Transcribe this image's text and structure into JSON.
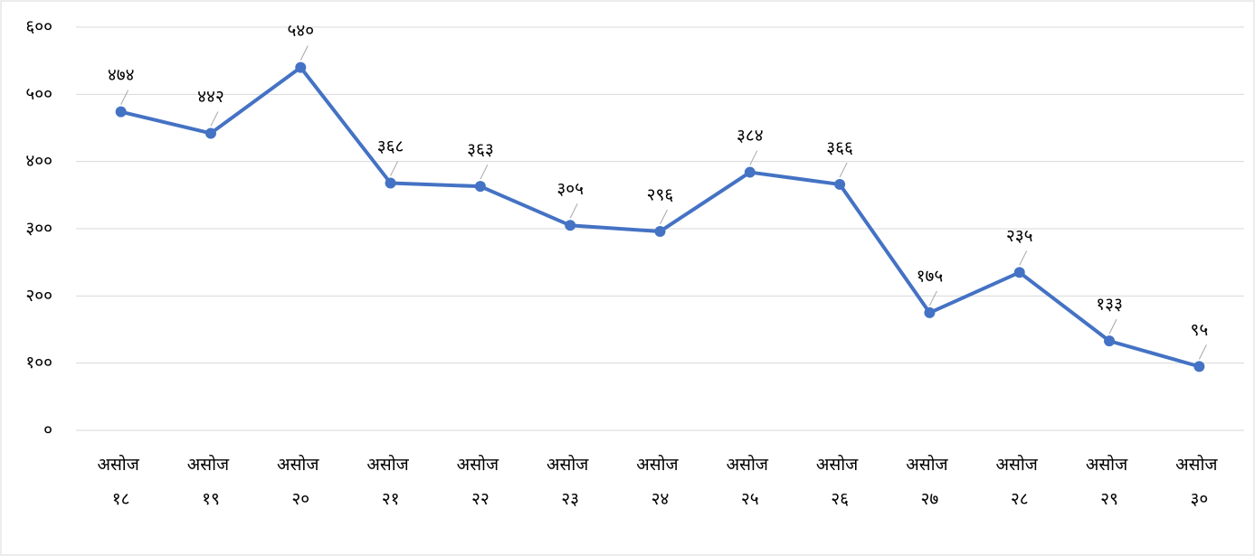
{
  "chart_data": {
    "type": "line",
    "categories": [
      "असोज १८",
      "असोज १९",
      "असोज २०",
      "असोज २१",
      "असोज २२",
      "असोज २३",
      "असोज २४",
      "असोज २५",
      "असोज २६",
      "असोज २७",
      "असोज २८",
      "असोज २९",
      "असोज ३०"
    ],
    "series": [
      {
        "color": "#4472c4",
        "values": [
          474,
          442,
          540,
          368,
          363,
          305,
          296,
          384,
          366,
          175,
          235,
          133,
          95
        ],
        "value_labels": [
          "४७४",
          "४४२",
          "५४०",
          "३६८",
          "३६३",
          "३०५",
          "२९६",
          "३८४",
          "३६६",
          "१७५",
          "२३५",
          "१३३",
          "९५"
        ]
      }
    ],
    "ylim": [
      0,
      600
    ],
    "yticks": [
      {
        "value": 0,
        "label": "०"
      },
      {
        "value": 100,
        "label": "१००"
      },
      {
        "value": 200,
        "label": "२००"
      },
      {
        "value": 300,
        "label": "३००"
      },
      {
        "value": 400,
        "label": "४००"
      },
      {
        "value": 500,
        "label": "५००"
      },
      {
        "value": 600,
        "label": "६००"
      }
    ],
    "grid": true
  }
}
